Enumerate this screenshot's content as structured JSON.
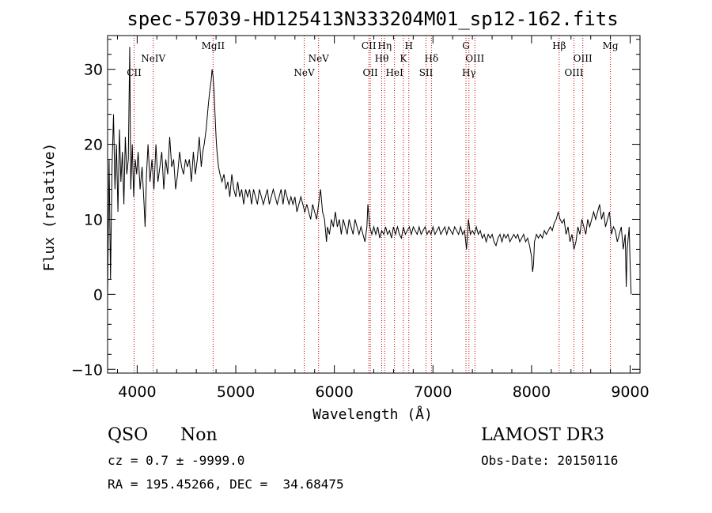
{
  "chart_data": {
    "type": "line",
    "title": "spec-57039-HD125413N333204M01_sp12-162.fits",
    "xlabel": "Wavelength (Å)",
    "ylabel": "Flux (relative)",
    "xlim": [
      3700,
      9100
    ],
    "ylim": [
      -10.5,
      34.5
    ],
    "xticks": [
      4000,
      5000,
      6000,
      7000,
      8000,
      9000
    ],
    "yticks": [
      -10,
      0,
      10,
      20,
      30
    ],
    "line_color": "#000000",
    "marker_color": "#cc0000",
    "series": [
      {
        "name": "spectrum",
        "points": [
          [
            3700,
            0
          ],
          [
            3715,
            18
          ],
          [
            3730,
            2
          ],
          [
            3745,
            17
          ],
          [
            3760,
            24
          ],
          [
            3775,
            14
          ],
          [
            3790,
            20
          ],
          [
            3805,
            11
          ],
          [
            3820,
            22
          ],
          [
            3835,
            15
          ],
          [
            3850,
            19
          ],
          [
            3865,
            12
          ],
          [
            3880,
            21
          ],
          [
            3895,
            16
          ],
          [
            3910,
            18
          ],
          [
            3925,
            33
          ],
          [
            3935,
            14
          ],
          [
            3950,
            20
          ],
          [
            3965,
            13
          ],
          [
            3980,
            18
          ],
          [
            3995,
            16
          ],
          [
            4010,
            19
          ],
          [
            4030,
            14
          ],
          [
            4050,
            17
          ],
          [
            4070,
            12
          ],
          [
            4080,
            9
          ],
          [
            4095,
            16
          ],
          [
            4110,
            20
          ],
          [
            4130,
            15
          ],
          [
            4150,
            18
          ],
          [
            4170,
            14
          ],
          [
            4190,
            20
          ],
          [
            4210,
            15
          ],
          [
            4230,
            17
          ],
          [
            4250,
            19
          ],
          [
            4270,
            14
          ],
          [
            4290,
            18
          ],
          [
            4310,
            16
          ],
          [
            4330,
            21
          ],
          [
            4350,
            17
          ],
          [
            4370,
            18
          ],
          [
            4390,
            14
          ],
          [
            4410,
            16
          ],
          [
            4430,
            19
          ],
          [
            4450,
            17
          ],
          [
            4470,
            16
          ],
          [
            4490,
            18
          ],
          [
            4510,
            17
          ],
          [
            4530,
            18
          ],
          [
            4550,
            15
          ],
          [
            4570,
            19
          ],
          [
            4590,
            16
          ],
          [
            4610,
            18
          ],
          [
            4630,
            21
          ],
          [
            4650,
            17
          ],
          [
            4665,
            19
          ],
          [
            4680,
            20
          ],
          [
            4700,
            22
          ],
          [
            4720,
            25
          ],
          [
            4735,
            27
          ],
          [
            4750,
            28.5
          ],
          [
            4760,
            30
          ],
          [
            4770,
            29
          ],
          [
            4780,
            27
          ],
          [
            4790,
            24
          ],
          [
            4800,
            21
          ],
          [
            4810,
            19
          ],
          [
            4825,
            17
          ],
          [
            4840,
            16
          ],
          [
            4860,
            15
          ],
          [
            4880,
            16
          ],
          [
            4900,
            14
          ],
          [
            4920,
            15
          ],
          [
            4940,
            13
          ],
          [
            4960,
            16
          ],
          [
            4980,
            14
          ],
          [
            5000,
            13
          ],
          [
            5020,
            15
          ],
          [
            5040,
            13
          ],
          [
            5060,
            14
          ],
          [
            5080,
            12
          ],
          [
            5100,
            14
          ],
          [
            5120,
            13
          ],
          [
            5140,
            14
          ],
          [
            5160,
            12
          ],
          [
            5180,
            14
          ],
          [
            5200,
            13
          ],
          [
            5220,
            12
          ],
          [
            5240,
            14
          ],
          [
            5260,
            13
          ],
          [
            5280,
            12
          ],
          [
            5300,
            13
          ],
          [
            5320,
            14
          ],
          [
            5340,
            12
          ],
          [
            5360,
            13
          ],
          [
            5380,
            14
          ],
          [
            5400,
            13
          ],
          [
            5420,
            12
          ],
          [
            5440,
            13
          ],
          [
            5460,
            14
          ],
          [
            5480,
            12
          ],
          [
            5500,
            14
          ],
          [
            5520,
            13
          ],
          [
            5540,
            12
          ],
          [
            5560,
            13
          ],
          [
            5580,
            12
          ],
          [
            5600,
            13
          ],
          [
            5620,
            11
          ],
          [
            5640,
            12
          ],
          [
            5660,
            13
          ],
          [
            5680,
            12
          ],
          [
            5700,
            11
          ],
          [
            5720,
            12
          ],
          [
            5740,
            11
          ],
          [
            5760,
            10
          ],
          [
            5780,
            12
          ],
          [
            5800,
            11
          ],
          [
            5820,
            10
          ],
          [
            5840,
            12
          ],
          [
            5860,
            14
          ],
          [
            5880,
            11
          ],
          [
            5900,
            10
          ],
          [
            5920,
            7
          ],
          [
            5930,
            9
          ],
          [
            5950,
            8
          ],
          [
            5970,
            10
          ],
          [
            5990,
            9
          ],
          [
            6010,
            11
          ],
          [
            6030,
            9
          ],
          [
            6050,
            10
          ],
          [
            6070,
            8
          ],
          [
            6090,
            10
          ],
          [
            6110,
            9
          ],
          [
            6130,
            8
          ],
          [
            6150,
            10
          ],
          [
            6170,
            9
          ],
          [
            6190,
            8
          ],
          [
            6210,
            10
          ],
          [
            6230,
            9
          ],
          [
            6250,
            8
          ],
          [
            6270,
            9
          ],
          [
            6290,
            8
          ],
          [
            6310,
            7
          ],
          [
            6330,
            9
          ],
          [
            6340,
            12
          ],
          [
            6360,
            9
          ],
          [
            6380,
            8
          ],
          [
            6400,
            9
          ],
          [
            6420,
            8
          ],
          [
            6440,
            9
          ],
          [
            6460,
            7.5
          ],
          [
            6480,
            8.5
          ],
          [
            6500,
            8
          ],
          [
            6520,
            9
          ],
          [
            6540,
            8
          ],
          [
            6560,
            8.5
          ],
          [
            6580,
            7.5
          ],
          [
            6600,
            9
          ],
          [
            6620,
            8
          ],
          [
            6640,
            9
          ],
          [
            6660,
            8
          ],
          [
            6680,
            7.5
          ],
          [
            6700,
            9
          ],
          [
            6720,
            8
          ],
          [
            6740,
            8.5
          ],
          [
            6760,
            9
          ],
          [
            6780,
            8
          ],
          [
            6800,
            9
          ],
          [
            6820,
            8.5
          ],
          [
            6840,
            8
          ],
          [
            6860,
            9
          ],
          [
            6880,
            8
          ],
          [
            6900,
            8.5
          ],
          [
            6920,
            9
          ],
          [
            6940,
            8
          ],
          [
            6960,
            8.5
          ],
          [
            6980,
            8
          ],
          [
            7000,
            9
          ],
          [
            7020,
            8
          ],
          [
            7040,
            8.5
          ],
          [
            7060,
            9
          ],
          [
            7080,
            8
          ],
          [
            7100,
            8.5
          ],
          [
            7120,
            9
          ],
          [
            7140,
            8
          ],
          [
            7160,
            9
          ],
          [
            7180,
            8.5
          ],
          [
            7200,
            8
          ],
          [
            7220,
            9
          ],
          [
            7240,
            8.5
          ],
          [
            7260,
            8
          ],
          [
            7280,
            9
          ],
          [
            7300,
            8
          ],
          [
            7320,
            8.5
          ],
          [
            7340,
            6
          ],
          [
            7360,
            10
          ],
          [
            7380,
            8
          ],
          [
            7400,
            8.5
          ],
          [
            7420,
            8
          ],
          [
            7440,
            9
          ],
          [
            7460,
            8
          ],
          [
            7480,
            8.5
          ],
          [
            7500,
            7.5
          ],
          [
            7520,
            8
          ],
          [
            7540,
            7
          ],
          [
            7560,
            8
          ],
          [
            7580,
            7.5
          ],
          [
            7600,
            8
          ],
          [
            7620,
            7
          ],
          [
            7640,
            6.5
          ],
          [
            7660,
            7.5
          ],
          [
            7680,
            8
          ],
          [
            7700,
            7
          ],
          [
            7720,
            8
          ],
          [
            7740,
            7.5
          ],
          [
            7760,
            8
          ],
          [
            7780,
            7
          ],
          [
            7800,
            7.5
          ],
          [
            7820,
            8
          ],
          [
            7840,
            7.5
          ],
          [
            7860,
            8
          ],
          [
            7880,
            7
          ],
          [
            7900,
            7.5
          ],
          [
            7920,
            8
          ],
          [
            7940,
            7
          ],
          [
            7960,
            7.5
          ],
          [
            7980,
            6.5
          ],
          [
            8000,
            5
          ],
          [
            8010,
            3
          ],
          [
            8020,
            4
          ],
          [
            8030,
            7
          ],
          [
            8050,
            8
          ],
          [
            8070,
            7.5
          ],
          [
            8090,
            8
          ],
          [
            8110,
            7.5
          ],
          [
            8130,
            8.5
          ],
          [
            8150,
            8
          ],
          [
            8170,
            8.5
          ],
          [
            8190,
            9
          ],
          [
            8210,
            8.5
          ],
          [
            8230,
            9.5
          ],
          [
            8250,
            10
          ],
          [
            8270,
            11
          ],
          [
            8290,
            10
          ],
          [
            8310,
            9.5
          ],
          [
            8330,
            10
          ],
          [
            8350,
            8
          ],
          [
            8370,
            9
          ],
          [
            8390,
            7
          ],
          [
            8410,
            8
          ],
          [
            8430,
            6
          ],
          [
            8450,
            7
          ],
          [
            8470,
            9
          ],
          [
            8490,
            8
          ],
          [
            8510,
            10
          ],
          [
            8530,
            9
          ],
          [
            8550,
            8
          ],
          [
            8570,
            10
          ],
          [
            8590,
            9
          ],
          [
            8610,
            10
          ],
          [
            8630,
            11
          ],
          [
            8650,
            10
          ],
          [
            8670,
            11
          ],
          [
            8690,
            12
          ],
          [
            8710,
            10
          ],
          [
            8730,
            11
          ],
          [
            8750,
            9
          ],
          [
            8770,
            10
          ],
          [
            8790,
            11
          ],
          [
            8810,
            8
          ],
          [
            8830,
            9
          ],
          [
            8850,
            8.5
          ],
          [
            8870,
            7
          ],
          [
            8890,
            8
          ],
          [
            8910,
            9
          ],
          [
            8930,
            6
          ],
          [
            8950,
            8
          ],
          [
            8960,
            1
          ],
          [
            8970,
            6
          ],
          [
            8990,
            9
          ],
          [
            9000,
            4
          ],
          [
            9010,
            0
          ]
        ]
      }
    ],
    "line_markers": [
      {
        "x": 3969,
        "label": "CII",
        "row": 2
      },
      {
        "x": 4163,
        "label": "NeIV",
        "row": 1
      },
      {
        "x": 4770,
        "label": "MgII",
        "row": 0
      },
      {
        "x": 5694,
        "label": "NeV",
        "row": 2
      },
      {
        "x": 5840,
        "label": "NeV",
        "row": 1
      },
      {
        "x": 6350,
        "label": "CII",
        "row": 0
      },
      {
        "x": 6365,
        "label": "OII",
        "row": 2
      },
      {
        "x": 6480,
        "label": "Hθ",
        "row": 1
      },
      {
        "x": 6510,
        "label": "Hη",
        "row": 0
      },
      {
        "x": 6610,
        "label": "HeI",
        "row": 2
      },
      {
        "x": 6700,
        "label": "K",
        "row": 1
      },
      {
        "x": 6755,
        "label": "H",
        "row": 0
      },
      {
        "x": 6930,
        "label": "SII",
        "row": 2
      },
      {
        "x": 6985,
        "label": "Hδ",
        "row": 1
      },
      {
        "x": 7335,
        "label": "G",
        "row": 0
      },
      {
        "x": 7365,
        "label": "Hγ",
        "row": 2
      },
      {
        "x": 7425,
        "label": "OIII",
        "row": 1
      },
      {
        "x": 8280,
        "label": "Hβ",
        "row": 0
      },
      {
        "x": 8430,
        "label": "OIII",
        "row": 2
      },
      {
        "x": 8520,
        "label": "OIII",
        "row": 1
      },
      {
        "x": 8800,
        "label": "Mg",
        "row": 0
      }
    ]
  },
  "info": {
    "class": "QSO",
    "subclass": "Non",
    "cz": "cz = 0.7 ± -9999.0",
    "coords": "RA = 195.45266, DEC =  34.68475",
    "survey": "LAMOST DR3",
    "obs_date": "Obs-Date: 20150116"
  }
}
